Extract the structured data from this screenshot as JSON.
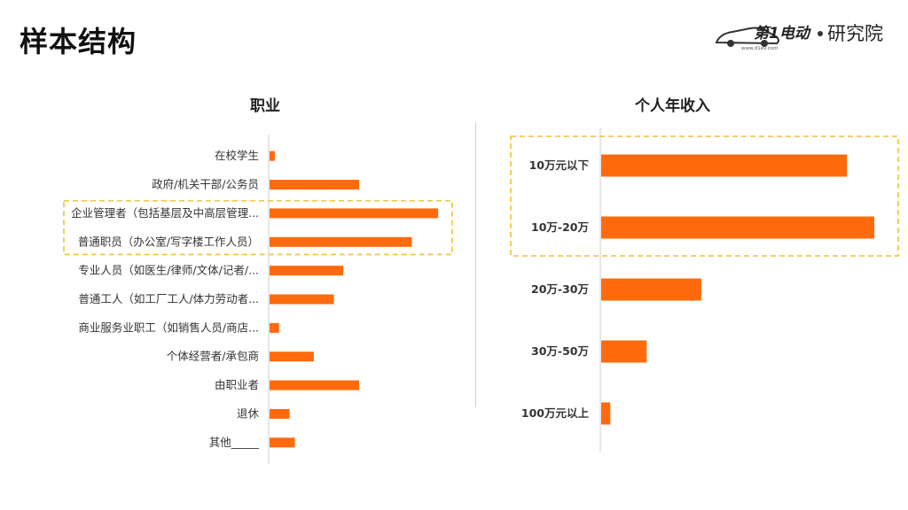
{
  "page": {
    "title": "样本结构"
  },
  "logo": {
    "brand": "第1电动",
    "suffix": "研究院",
    "url_text": "www.d1ev.com"
  },
  "colors": {
    "bar": "#FF6A0C",
    "highlight": "#F2C94C",
    "axis": "#cccccc"
  },
  "chart_data": [
    {
      "type": "bar",
      "orientation": "horizontal",
      "title": "职业",
      "categories": [
        "在校学生",
        "政府/机关干部/公务员",
        "企业管理者（包括基层及中高层管理...",
        "普通职员（办公室/写字楼工作人员）",
        "专业人员（如医生/律师/文体/记者/...",
        "普通工人（如工厂工人/体力劳动者...",
        "商业服务业职工（如销售人员/商店...",
        "个体经营者/承包商",
        "由职业者",
        "退休",
        "其他_____"
      ],
      "values": [
        0.5,
        8.5,
        16.0,
        13.5,
        7.0,
        6.1,
        0.9,
        4.2,
        8.5,
        1.9,
        2.4
      ],
      "xlim": [
        0,
        17
      ],
      "highlighted": [
        "企业管理者（包括基层及中高层管理...",
        "普通职员（办公室/写字楼工作人员）"
      ]
    },
    {
      "type": "bar",
      "orientation": "horizontal",
      "title": "个人年收入",
      "categories": [
        "10万元以下",
        "10万-20万",
        "20万-30万",
        "30万-50万",
        "100万元以上"
      ],
      "values": [
        27.0,
        30.0,
        11.0,
        5.0,
        1.0
      ],
      "xlim": [
        0,
        30
      ],
      "highlighted": [
        "10万元以下",
        "10万-20万"
      ]
    }
  ]
}
